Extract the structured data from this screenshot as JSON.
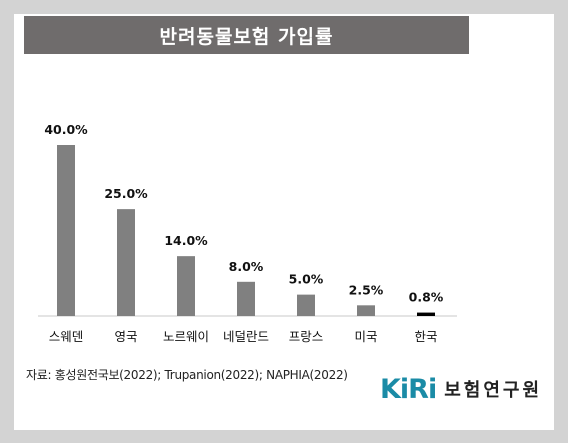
{
  "title": "반려동물보험 가입률",
  "source": "자료: 홍성원전국보(2022); Trupanion(2022); NAPHIA(2022)",
  "logo": {
    "mark": "KiRi",
    "name": "보험연구원"
  },
  "colors": {
    "bar": "#808080",
    "highlight": "#000000",
    "title_bg": "#6f6c6c",
    "accent": "#1a8ba6"
  },
  "chart_data": {
    "type": "bar",
    "title": "반려동물보험 가입률",
    "categories": [
      "스웨덴",
      "영국",
      "노르웨이",
      "네덜란드",
      "프랑스",
      "미국",
      "한국"
    ],
    "values": [
      40.0,
      25.0,
      14.0,
      8.0,
      5.0,
      2.5,
      0.8
    ],
    "value_labels": [
      "40.0%",
      "25.0%",
      "14.0%",
      "8.0%",
      "5.0%",
      "2.5%",
      "0.8%"
    ],
    "highlight_index": 6,
    "ylim": [
      0,
      40
    ],
    "grid": false,
    "legend": "none",
    "xlabel": "",
    "ylabel": ""
  }
}
